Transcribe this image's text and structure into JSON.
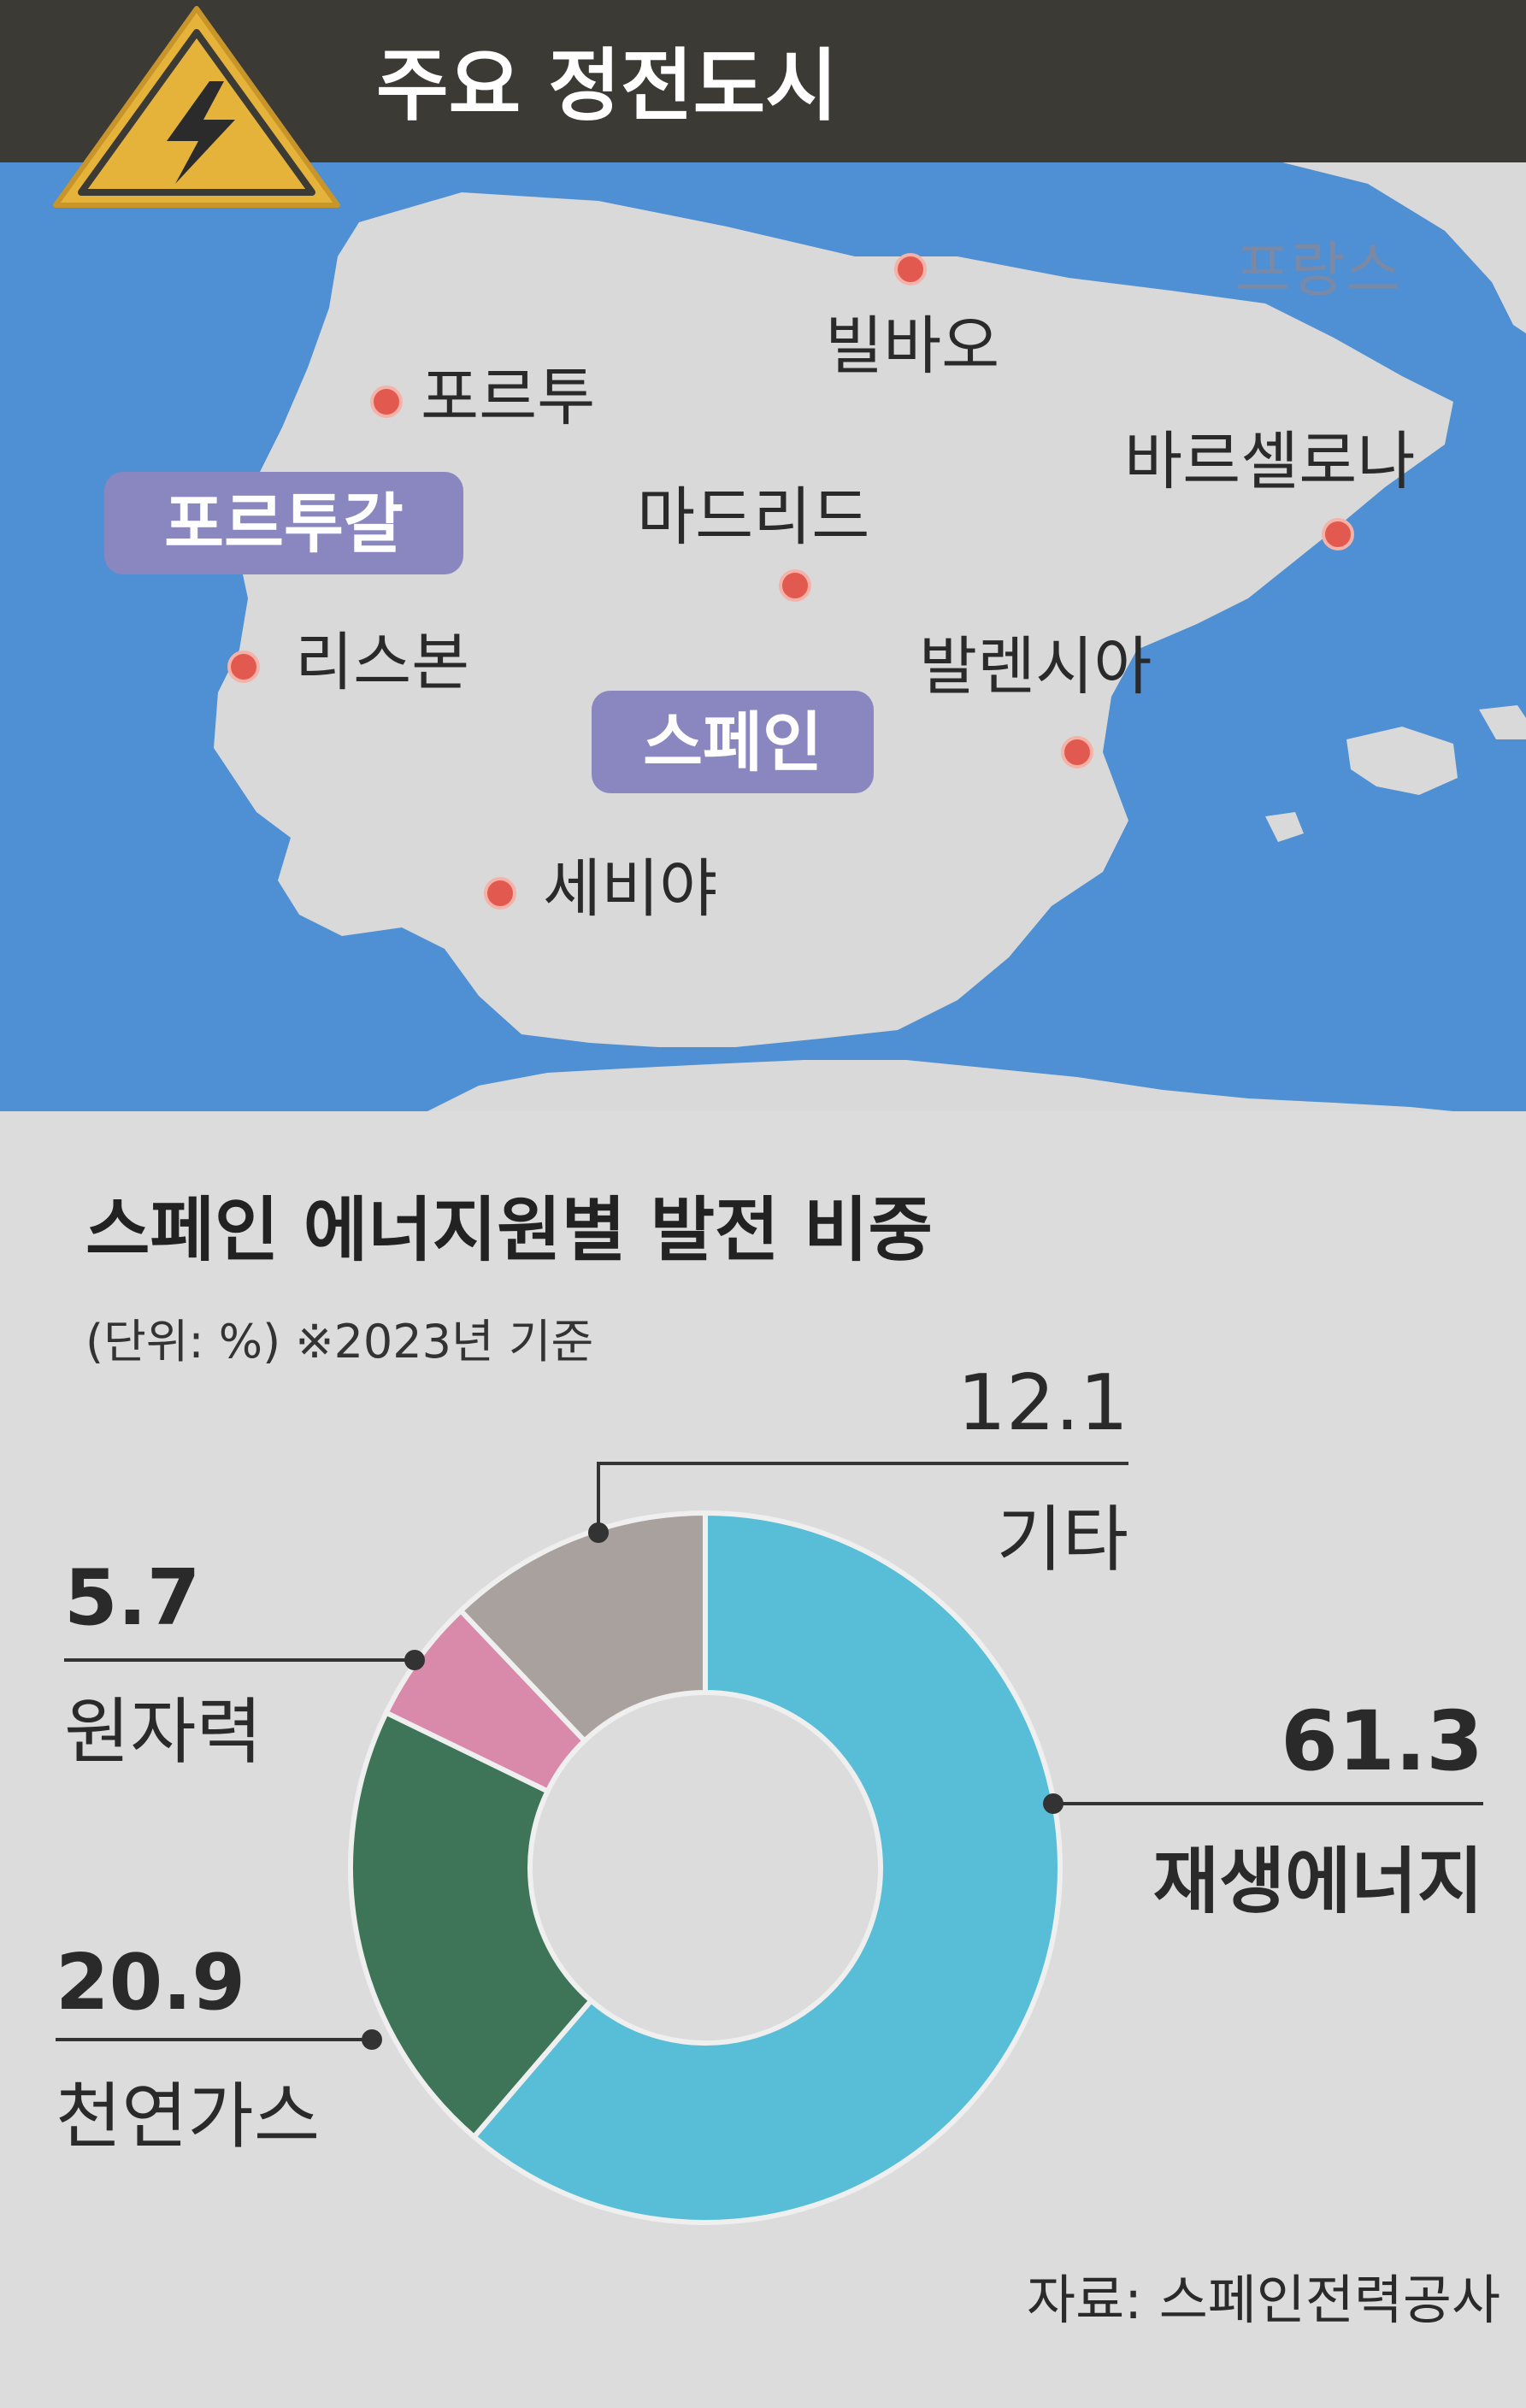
{
  "map": {
    "title": "주요 정전도시",
    "icon": "lightning-warning-icon",
    "country_labels": [
      {
        "id": "portugal",
        "text": "포르투갈"
      },
      {
        "id": "spain",
        "text": "스페인"
      },
      {
        "id": "france",
        "text": "프랑스"
      }
    ],
    "cities": [
      {
        "id": "porto",
        "name": "포르투"
      },
      {
        "id": "lisbon",
        "name": "리스본"
      },
      {
        "id": "bilbao",
        "name": "빌바오"
      },
      {
        "id": "madrid",
        "name": "마드리드"
      },
      {
        "id": "barcelona",
        "name": "바르셀로나"
      },
      {
        "id": "valencia",
        "name": "발렌시아"
      },
      {
        "id": "seville",
        "name": "세비야"
      }
    ],
    "colors": {
      "sea": "#4f8fd3",
      "land": "#d9d9d9",
      "city_dot": "#e25a4f",
      "country_label_bg": "#8a86bf",
      "title_bar": "#3b3a35",
      "warning": "#e6b33a"
    }
  },
  "chart_data": {
    "type": "pie",
    "title": "스페인 에너지원별 발전 비중",
    "subtitle": "(단위: %) ※2023년 기준",
    "categories": [
      "재생에너지",
      "천연가스",
      "원자력",
      "기타"
    ],
    "values": [
      61.3,
      20.9,
      5.7,
      12.1
    ],
    "value_labels": [
      "61.3",
      "20.9",
      "5.7",
      "12.1"
    ],
    "colors": [
      "#58bdd6",
      "#3e7559",
      "#d989aa",
      "#a9a19e"
    ],
    "donut": true,
    "source": "자료: 스페인전력공사"
  }
}
